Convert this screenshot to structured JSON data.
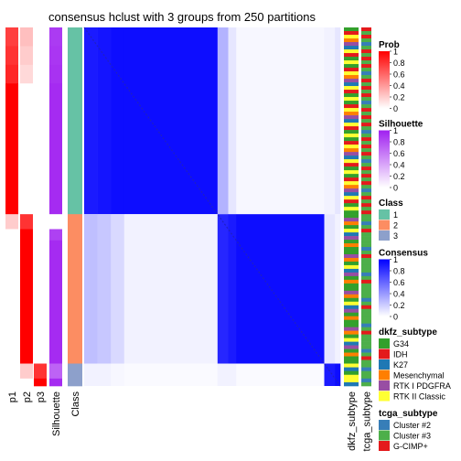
{
  "chart_data": {
    "type": "heatmap",
    "title": "consensus hclust with 3 groups from 250 partitions",
    "columns": {
      "p1": "p1",
      "p2": "p2",
      "p3": "p3",
      "silhouette": "Silhouette",
      "class": "Class",
      "dkfz": "dkfz_subtype",
      "tcga": "tcga_subtype"
    },
    "segments": [
      {
        "class": 1,
        "n": 10,
        "p": [
          0.75,
          0.25,
          0.0
        ],
        "sil": 0.88,
        "consensus": [
          0.9,
          0.25,
          0.05
        ]
      },
      {
        "class": 1,
        "n": 10,
        "p": [
          0.8,
          0.2,
          0.0
        ],
        "sil": 0.9,
        "consensus": [
          0.92,
          0.22,
          0.05
        ]
      },
      {
        "class": 1,
        "n": 10,
        "p": [
          0.85,
          0.15,
          0.0
        ],
        "sil": 0.92,
        "consensus": [
          0.95,
          0.15,
          0.03
        ]
      },
      {
        "class": 1,
        "n": 70,
        "p": [
          1.0,
          0.0,
          0.0
        ],
        "sil": 0.95,
        "consensus": [
          0.95,
          0.05,
          0.02
        ]
      },
      {
        "class": 2,
        "n": 8,
        "p": [
          0.2,
          0.8,
          0.0
        ],
        "sil": 0.0,
        "consensus": [
          0.3,
          0.85,
          0.05
        ]
      },
      {
        "class": 2,
        "n": 6,
        "p": [
          0.0,
          1.0,
          0.0
        ],
        "sil": 0.85,
        "consensus": [
          0.1,
          0.9,
          0.05
        ]
      },
      {
        "class": 2,
        "n": 66,
        "p": [
          0.0,
          1.0,
          0.0
        ],
        "sil": 0.95,
        "consensus": [
          0.03,
          0.95,
          0.02
        ]
      },
      {
        "class": 3,
        "n": 8,
        "p": [
          0.0,
          0.2,
          0.8
        ],
        "sil": 0.7,
        "consensus": [
          0.05,
          0.1,
          0.9
        ]
      },
      {
        "class": 3,
        "n": 4,
        "p": [
          0.0,
          0.0,
          1.0
        ],
        "sil": 0.95,
        "consensus": [
          0.1,
          0.05,
          0.95
        ]
      }
    ],
    "class_colors": {
      "1": "#66C2A5",
      "2": "#FC8D62",
      "3": "#8DA0CB"
    },
    "dkfz_colors": {
      "G34": "#33A02C",
      "IDH": "#E31A1C",
      "K27": "#1F78B4",
      "Mesenchymal": "#FF7F00",
      "RTK I PDGFRA": "#984EA3",
      "RTK II Classic": "#FFFF33"
    },
    "tcga_colors": {
      "Cluster #2": "#377EB8",
      "Cluster #3": "#4DAF4A",
      "G-CIMP+": "#E41A1C"
    },
    "dkfz_by_class": {
      "1": [
        "G34",
        "IDH",
        "RTK II Classic",
        "Mesenchymal",
        "RTK I PDGFRA",
        "K27",
        "RTK II Classic",
        "IDH",
        "G34",
        "RTK II Classic"
      ],
      "2": [
        "G34",
        "RTK I PDGFRA",
        "Mesenchymal",
        "G34",
        "RTK II Classic",
        "K27",
        "RTK I PDGFRA",
        "G34",
        "Mesenchymal",
        "G34"
      ],
      "3": [
        "RTK II Classic",
        "K27",
        "G34",
        "RTK II Classic"
      ]
    },
    "tcga_by_class": {
      "1": [
        "G-CIMP+",
        "Cluster #3",
        "G-CIMP+",
        "Cluster #3",
        "Cluster #2",
        "Cluster #3",
        "G-CIMP+",
        "Cluster #3"
      ],
      "2": [
        "Cluster #3",
        "Cluster #3",
        "Cluster #2",
        "Cluster #3",
        "G-CIMP+",
        "Cluster #3",
        "Cluster #3"
      ],
      "3": [
        "Cluster #3",
        "Cluster #2",
        "Cluster #3"
      ]
    },
    "legends": [
      {
        "key": "prob",
        "title": "Prob",
        "type": "continuous",
        "ticks": [
          "1",
          "0.8",
          "0.6",
          "0.4",
          "0.2",
          "0"
        ],
        "colors": [
          "#FF0000",
          "#FFFFFF"
        ]
      },
      {
        "key": "silhouette",
        "title": "Silhouette",
        "type": "continuous",
        "ticks": [
          "1",
          "0.8",
          "0.6",
          "0.4",
          "0.2",
          "0"
        ],
        "colors": [
          "#A020F0",
          "#FFFFFF"
        ]
      },
      {
        "key": "class",
        "title": "Class",
        "type": "discrete",
        "items": [
          "1",
          "2",
          "3"
        ]
      },
      {
        "key": "consensus",
        "title": "Consensus",
        "type": "continuous",
        "ticks": [
          "1",
          "0.8",
          "0.6",
          "0.4",
          "0.2",
          "0"
        ],
        "colors": [
          "#0000FF",
          "#FFFFFF"
        ]
      },
      {
        "key": "dkfz",
        "title": "dkfz_subtype",
        "type": "discrete",
        "items": [
          "G34",
          "IDH",
          "K27",
          "Mesenchymal",
          "RTK I PDGFRA",
          "RTK II Classic"
        ]
      },
      {
        "key": "tcga",
        "title": "tcga_subtype",
        "type": "discrete",
        "items": [
          "Cluster #2",
          "Cluster #3",
          "G-CIMP+"
        ]
      }
    ]
  }
}
